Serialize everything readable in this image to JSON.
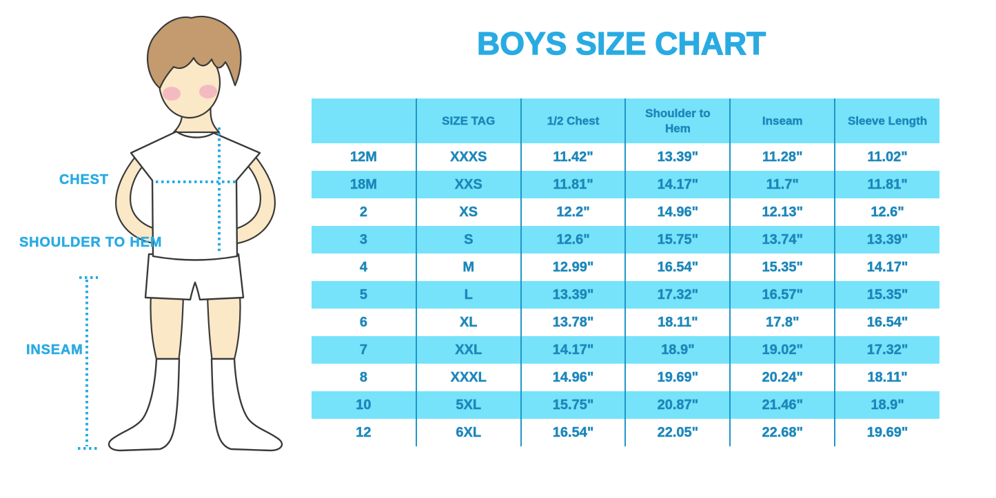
{
  "title": "BOYS SIZE CHART",
  "figure": {
    "labels": {
      "chest": "CHEST",
      "shoulder_to_hem": "SHOULDER TO HEM",
      "inseam": "INSEAM"
    }
  },
  "colors": {
    "accent_blue": "#29ABE2",
    "table_stripe": "#76E3FA",
    "table_text": "#1D87BA",
    "table_divider": "#2095C8",
    "skin": "#FBE8C6",
    "hair": "#C49B6E",
    "outline": "#3A3A3A",
    "blush": "#F2AEC1",
    "cloth_white": "#FFFFFF",
    "background": "#FFFFFF"
  },
  "chart_data": {
    "type": "table",
    "title": "BOYS SIZE CHART",
    "columns": [
      "",
      "SIZE TAG",
      "1/2 Chest",
      "Shoulder to Hem",
      "Inseam",
      "Sleeve Length"
    ],
    "rows": [
      [
        "12M",
        "XXXS",
        "11.42\"",
        "13.39\"",
        "11.28\"",
        "11.02\""
      ],
      [
        "18M",
        "XXS",
        "11.81\"",
        "14.17\"",
        "11.7\"",
        "11.81\""
      ],
      [
        "2",
        "XS",
        "12.2\"",
        "14.96\"",
        "12.13\"",
        "12.6\""
      ],
      [
        "3",
        "S",
        "12.6\"",
        "15.75\"",
        "13.74\"",
        "13.39\""
      ],
      [
        "4",
        "M",
        "12.99\"",
        "16.54\"",
        "15.35\"",
        "14.17\""
      ],
      [
        "5",
        "L",
        "13.39\"",
        "17.32\"",
        "16.57\"",
        "15.35\""
      ],
      [
        "6",
        "XL",
        "13.78\"",
        "18.11\"",
        "17.8\"",
        "16.54\""
      ],
      [
        "7",
        "XXL",
        "14.17\"",
        "18.9\"",
        "19.02\"",
        "17.32\""
      ],
      [
        "8",
        "XXXL",
        "14.96\"",
        "19.69\"",
        "20.24\"",
        "18.11\""
      ],
      [
        "10",
        "5XL",
        "15.75\"",
        "20.87\"",
        "21.46\"",
        "18.9\""
      ],
      [
        "12",
        "6XL",
        "16.54\"",
        "22.05\"",
        "22.68\"",
        "19.69\""
      ]
    ]
  }
}
